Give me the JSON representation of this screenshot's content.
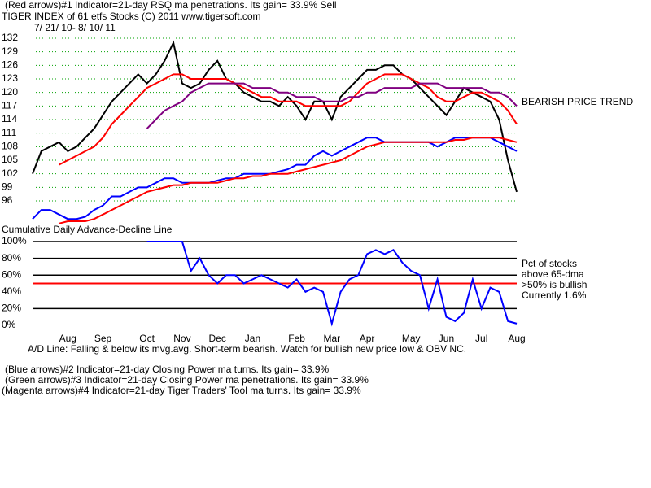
{
  "chart_data": [
    {
      "type": "line",
      "title": "TIGER INDEX of  61 etfs Stocks  (C) 2011   www.tigersoft.com",
      "subtitle": "7/ 21/ 10- 8/ 10/ 11",
      "annotations": [
        "(Red arrows)#1 Indicator=21-day RSQ ma penetrations.  Its gain= 33.9% Sell",
        "BEARISH PRICE TREND",
        "Cumulative Daily Advance-Decline Line"
      ],
      "ylim": [
        91,
        133
      ],
      "yticks": [
        96,
        99,
        102,
        105,
        108,
        111,
        114,
        117,
        120,
        123,
        126,
        129,
        132
      ],
      "grid": true,
      "grid_color": "#00a000",
      "series": [
        {
          "color": "#000000",
          "values": [
            102,
            107,
            108,
            109,
            107,
            108,
            110,
            112,
            115,
            118,
            120,
            122,
            124,
            122,
            124,
            127,
            131,
            122,
            121,
            122,
            125,
            127,
            123,
            122,
            120,
            119,
            118,
            118,
            117,
            119,
            117,
            114,
            118,
            118,
            114,
            119,
            121,
            123,
            125,
            125,
            126,
            126,
            124,
            123,
            121,
            119,
            117,
            115,
            118,
            121,
            120,
            119,
            118,
            114,
            105,
            98
          ]
        },
        {
          "color": "#ff0000",
          "values": [
            null,
            null,
            null,
            104,
            105,
            106,
            107,
            108,
            110,
            113,
            115,
            117,
            119,
            121,
            122,
            123,
            124,
            124,
            123,
            123,
            123,
            123,
            123,
            122,
            121,
            120,
            119,
            119,
            118,
            118,
            118,
            117,
            117,
            117,
            117,
            117,
            118,
            120,
            122,
            123,
            124,
            124,
            124,
            123,
            122,
            121,
            119,
            118,
            118,
            119,
            120,
            120,
            119,
            118,
            116,
            113
          ]
        },
        {
          "color": "#800080",
          "values": [
            null,
            null,
            null,
            null,
            null,
            null,
            null,
            null,
            null,
            null,
            null,
            null,
            null,
            112,
            114,
            116,
            117,
            118,
            120,
            121,
            122,
            122,
            122,
            122,
            122,
            121,
            121,
            121,
            120,
            120,
            119,
            119,
            119,
            118,
            118,
            118,
            119,
            119,
            120,
            120,
            121,
            121,
            121,
            121,
            122,
            122,
            122,
            121,
            121,
            121,
            121,
            121,
            120,
            120,
            119,
            117
          ]
        },
        {
          "color": "#0000ff",
          "values": [
            92,
            94,
            94,
            93,
            92,
            92,
            92.5,
            94,
            95,
            97,
            97,
            98,
            99,
            99,
            100,
            101,
            101,
            100,
            100,
            100,
            100,
            100.5,
            101,
            101,
            102,
            102,
            102,
            102,
            102.5,
            103,
            104,
            104,
            106,
            107,
            106,
            107,
            108,
            109,
            110,
            110,
            109,
            109,
            109,
            109,
            109,
            109,
            108,
            109,
            110,
            110,
            110,
            110,
            110,
            109,
            108,
            107
          ]
        },
        {
          "color": "#ff0000",
          "values": [
            null,
            null,
            null,
            91,
            91.5,
            91.5,
            91.5,
            92,
            93,
            94,
            95,
            96,
            97,
            98,
            98.5,
            99,
            99.5,
            99.5,
            100,
            100,
            100,
            100,
            100.5,
            101,
            101,
            101.5,
            101.5,
            102,
            102,
            102,
            102.5,
            103,
            103.5,
            104,
            104.5,
            105,
            106,
            107,
            108,
            108.5,
            109,
            109,
            109,
            109,
            109,
            109,
            109,
            109,
            109.5,
            109.5,
            110,
            110,
            110,
            110,
            109.5,
            109
          ]
        }
      ]
    },
    {
      "type": "line",
      "annotations": [
        "Pct of stocks",
        "above 65-dma",
        ">50% is bullish",
        "Currently  1.6%",
        "A/D Line: Falling & below its mvg.avg. Short-term bearish. Watch for bullish new price low & OBV NC."
      ],
      "ylim": [
        0,
        100
      ],
      "yticks": [
        {
          "value": 0,
          "label": "0%"
        },
        {
          "value": 20,
          "label": "20%"
        },
        {
          "value": 40,
          "label": "40%"
        },
        {
          "value": 60,
          "label": "60%"
        },
        {
          "value": 80,
          "label": "80%"
        },
        {
          "value": 100,
          "label": "100%"
        }
      ],
      "grid_lines": [
        20,
        60,
        80,
        100
      ],
      "grid_color": "#000000",
      "reference_line": {
        "value": 50,
        "color": "#ff0000"
      },
      "categories": [
        null,
        null,
        null,
        null,
        "Aug",
        null,
        null,
        null,
        "Sep",
        null,
        null,
        null,
        null,
        "Oct",
        null,
        null,
        null,
        "Nov",
        null,
        null,
        null,
        "Dec",
        null,
        null,
        null,
        "Jan",
        null,
        null,
        null,
        null,
        "Feb",
        null,
        null,
        null,
        "Mar",
        null,
        null,
        null,
        "Apr",
        null,
        null,
        null,
        null,
        "May",
        null,
        null,
        null,
        "Jun",
        null,
        null,
        null,
        "Jul",
        null,
        null,
        null,
        "Aug"
      ],
      "series": [
        {
          "color": "#0000ff",
          "values": [
            null,
            null,
            null,
            null,
            null,
            null,
            null,
            null,
            null,
            null,
            null,
            null,
            null,
            100,
            100,
            100,
            100,
            100,
            65,
            80,
            60,
            50,
            60,
            60,
            50,
            55,
            60,
            55,
            50,
            45,
            55,
            40,
            45,
            40,
            2,
            40,
            55,
            60,
            85,
            90,
            85,
            90,
            75,
            65,
            60,
            20,
            55,
            10,
            5,
            15,
            55,
            20,
            45,
            40,
            5,
            2
          ]
        }
      ]
    }
  ],
  "notes": [
    "(Blue arrows)#2 Indicator=21-day Closing Power ma turns.  Its gain= 33.9%",
    "(Green arrows)#3 Indicator=21-day Closing Power ma penetrations.  Its gain= 33.9%",
    "(Magenta arrows)#4 Indicator=21-day Tiger Traders' Tool ma turns.  Its gain= 33.9%"
  ]
}
